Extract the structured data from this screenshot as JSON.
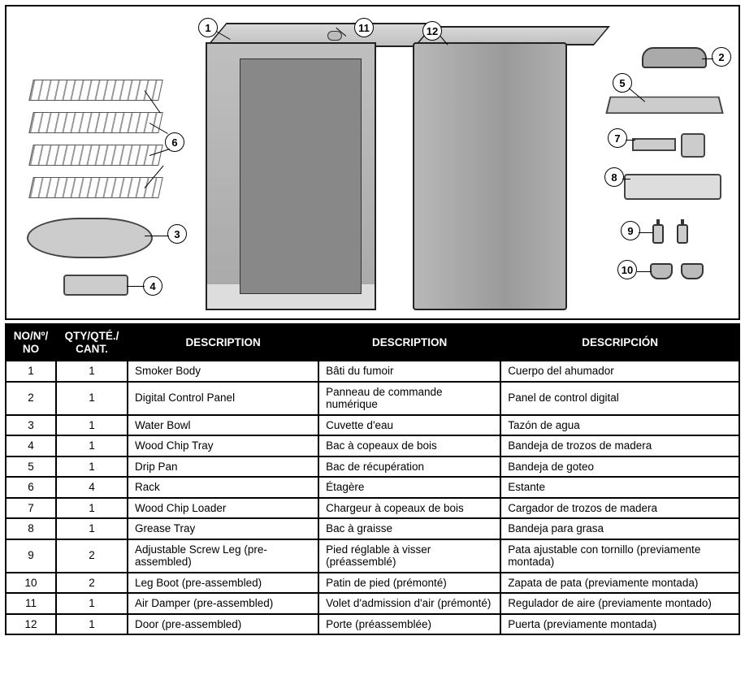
{
  "table": {
    "headers": {
      "no": "NO/Nº/\nNO",
      "qty": "QTY/QTÉ./\nCANT.",
      "desc_en": "DESCRIPTION",
      "desc_fr": "DESCRIPTION",
      "desc_es": "DESCRIPCIÓN"
    },
    "rows": [
      {
        "no": "1",
        "qty": "1",
        "en": "Smoker Body",
        "fr": "Bâti du fumoir",
        "es": "Cuerpo del ahumador"
      },
      {
        "no": "2",
        "qty": "1",
        "en": "Digital Control Panel",
        "fr": "Panneau de commande numérique",
        "es": "Panel de control digital"
      },
      {
        "no": "3",
        "qty": "1",
        "en": "Water Bowl",
        "fr": "Cuvette d'eau",
        "es": "Tazón de agua"
      },
      {
        "no": "4",
        "qty": "1",
        "en": "Wood Chip Tray",
        "fr": "Bac à copeaux de bois",
        "es": "Bandeja de trozos de madera"
      },
      {
        "no": "5",
        "qty": "1",
        "en": "Drip Pan",
        "fr": "Bac de récupération",
        "es": "Bandeja de goteo"
      },
      {
        "no": "6",
        "qty": "4",
        "en": "Rack",
        "fr": "Étagère",
        "es": "Estante"
      },
      {
        "no": "7",
        "qty": "1",
        "en": "Wood Chip Loader",
        "fr": "Chargeur à copeaux de bois",
        "es": "Cargador de trozos de madera"
      },
      {
        "no": "8",
        "qty": "1",
        "en": "Grease Tray",
        "fr": "Bac à graisse",
        "es": "Bandeja para grasa"
      },
      {
        "no": "9",
        "qty": "2",
        "en": "Adjustable Screw Leg (pre-assembled)",
        "fr": "Pied réglable à visser (préassemblé)",
        "es": "Pata ajustable con tornillo (previamente montada)"
      },
      {
        "no": "10",
        "qty": "2",
        "en": "Leg Boot (pre-assembled)",
        "fr": "Patin de pied (prémonté)",
        "es": "Zapata de pata (previamente montada)"
      },
      {
        "no": "11",
        "qty": "1",
        "en": "Air Damper (pre-assembled)",
        "fr": "Volet d'admission d'air (prémonté)",
        "es": "Regulador de aire (previamente montado)"
      },
      {
        "no": "12",
        "qty": "1",
        "en": "Door (pre-assembled)",
        "fr": "Porte (préassemblée)",
        "es": "Puerta (previamente montada)"
      }
    ]
  },
  "diagram": {
    "callouts": {
      "c1": "1",
      "c2": "2",
      "c3": "3",
      "c4": "4",
      "c5": "5",
      "c6": "6",
      "c7": "7",
      "c8": "8",
      "c9": "9",
      "c10": "10",
      "c11": "11",
      "c12": "12"
    },
    "colors": {
      "border": "#000000",
      "part_fill": "#cccccc",
      "part_stroke": "#444444",
      "body_fill": "#b0b0b0"
    }
  }
}
